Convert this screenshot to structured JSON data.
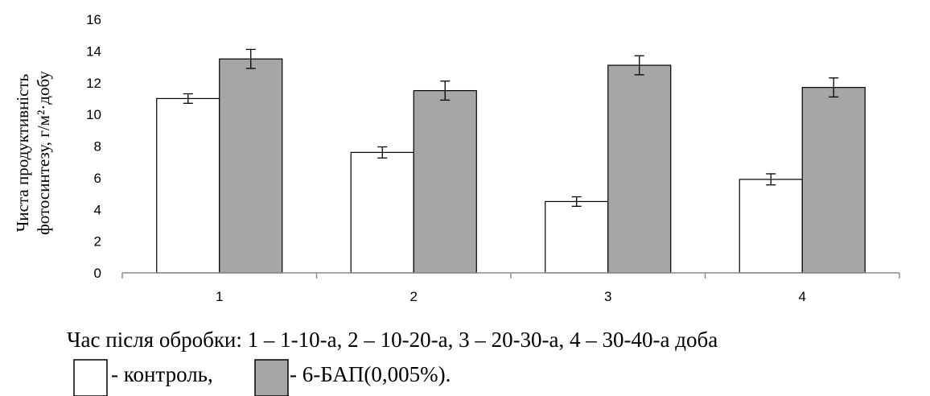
{
  "chart_data": {
    "type": "bar",
    "categories": [
      "1",
      "2",
      "3",
      "4"
    ],
    "series": [
      {
        "name": "контроль",
        "values": [
          11.0,
          7.6,
          4.5,
          5.9
        ],
        "errors": [
          0.3,
          0.35,
          0.3,
          0.35
        ],
        "color": "#ffffff"
      },
      {
        "name": "6-БАП(0,005%)",
        "values": [
          13.5,
          11.5,
          13.1,
          11.7
        ],
        "errors": [
          0.6,
          0.6,
          0.6,
          0.6
        ],
        "color": "#a6a6a6"
      }
    ],
    "ylim": [
      0,
      16
    ],
    "yticks": [
      "0",
      "2",
      "4",
      "6",
      "8",
      "10",
      "12",
      "14",
      "16"
    ],
    "ylabel_line1": "Чиста продуктивність",
    "ylabel_line2": "фотосинтезу, г/м²·добу",
    "caption_line1": "Час після обробки: 1 – 1-10-а, 2 – 10-20-а, 3 – 20-30-а, 4 – 30-40-а доба",
    "legend": [
      {
        "label": "- контроль,",
        "color": "#ffffff"
      },
      {
        "label": "- 6-БАП(0,005%).",
        "color": "#a6a6a6"
      }
    ]
  }
}
